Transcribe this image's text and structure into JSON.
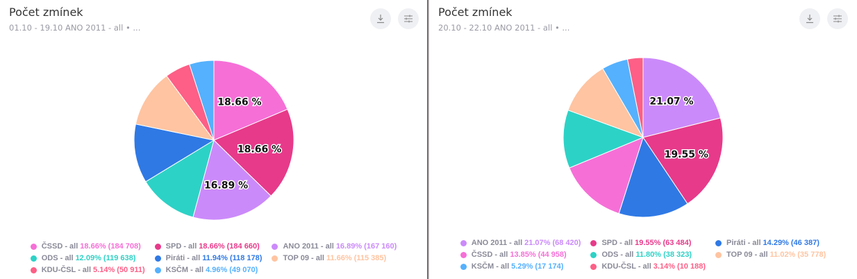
{
  "colors": {
    "ČSSD": "#f66fd7",
    "SPD": "#e73a8a",
    "ANO 2011": "#cb8afa",
    "ODS": "#2dd2c6",
    "Piráti": "#2f79e5",
    "TOP 09": "#ffc4a1",
    "KDU-ČSL": "#fd5f86",
    "KSČM": "#55b1fd"
  },
  "icons": [
    "download-icon",
    "settings-sliders-icon"
  ],
  "chart_data": [
    {
      "type": "pie",
      "title": "Počet zmínek",
      "subtitle": "01.10 - 19.10   ANO 2011 - all • ...",
      "slices": [
        {
          "name": "ČSSD - all",
          "percent": 18.66,
          "count": "184 708",
          "label": "18.66 %"
        },
        {
          "name": "SPD - all",
          "percent": 18.66,
          "count": "184 660",
          "label": "18.66 %"
        },
        {
          "name": "ANO 2011 - all",
          "percent": 16.89,
          "count": "167 160",
          "label": "16.89 %"
        },
        {
          "name": "ODS - all",
          "percent": 12.09,
          "count": "119 638"
        },
        {
          "name": "Piráti - all",
          "percent": 11.94,
          "count": "118 178"
        },
        {
          "name": "TOP 09 - all",
          "percent": 11.66,
          "count": "115 385"
        },
        {
          "name": "KDU-ČSL - all",
          "percent": 5.14,
          "count": "50 911"
        },
        {
          "name": "KSČM - all",
          "percent": 4.96,
          "count": "49 070"
        }
      ],
      "legend": "bottom"
    },
    {
      "type": "pie",
      "title": "Počet zmínek",
      "subtitle": "20.10 - 22.10   ANO 2011 - all • ...",
      "slices": [
        {
          "name": "ANO 2011 - all",
          "percent": 21.07,
          "count": "68 420",
          "label": "21.07 %"
        },
        {
          "name": "SPD - all",
          "percent": 19.55,
          "count": "63 484",
          "label": "19.55 %"
        },
        {
          "name": "Piráti - all",
          "percent": 14.29,
          "count": "46 387"
        },
        {
          "name": "ČSSD - all",
          "percent": 13.85,
          "count": "44 958"
        },
        {
          "name": "ODS - all",
          "percent": 11.8,
          "count": "38 323"
        },
        {
          "name": "TOP 09 - all",
          "percent": 11.02,
          "count": "35 778"
        },
        {
          "name": "KSČM - all",
          "percent": 5.29,
          "count": "17 174"
        },
        {
          "name": "KDU-ČSL - all",
          "percent": 3.14,
          "count": "10 188"
        }
      ],
      "legend": "bottom"
    }
  ]
}
